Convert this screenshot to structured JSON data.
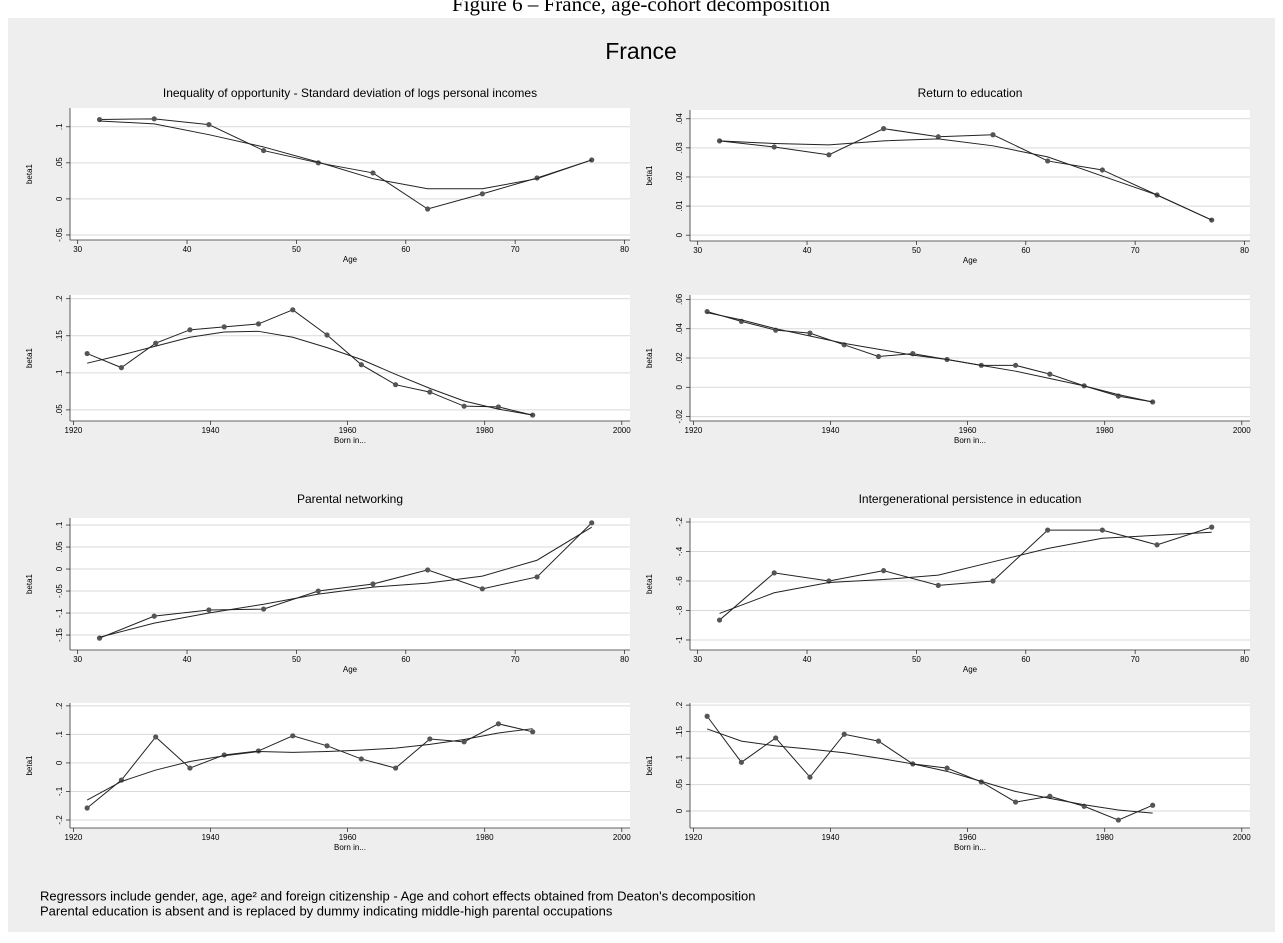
{
  "figure_caption": "Figure 6 – France, age-cohort decomposition",
  "title": "France",
  "notes": [
    "Regressors include gender, age, age² and foreign citizenship - Age and cohort effects obtained from Deaton's decomposition",
    "Parental education is absent and is replaced by dummy indicating middle-high parental occupations"
  ],
  "chart_data": [
    {
      "type": "line",
      "title": "Inequality of opportunity - Standard deviation of logs personal incomes",
      "ylabel": "beta1",
      "xlabel": "Age",
      "x": [
        32,
        37,
        42,
        47,
        52,
        57,
        62,
        67,
        72,
        77
      ],
      "xlim": [
        29.3,
        80.5
      ],
      "xticks": [
        30,
        40,
        50,
        60,
        70,
        80
      ],
      "ylim": [
        -0.057,
        0.126
      ],
      "yticks": [
        {
          "value": -0.05,
          "label": "-.05"
        },
        0,
        {
          "value": 0.05,
          "label": ".05"
        },
        {
          "value": 0.1,
          "label": ".1"
        }
      ],
      "grid": true,
      "series": [
        {
          "color": "#222222",
          "markers": true,
          "values": [
            0.11,
            0.111,
            0.103,
            0.067,
            0.05,
            0.036,
            -0.014,
            0.007,
            0.029,
            0.054
          ]
        },
        {
          "color": "#222222",
          "markers": false,
          "values": [
            0.108,
            0.104,
            0.089,
            0.072,
            0.051,
            0.028,
            0.014,
            0.014,
            0.028,
            0.054
          ]
        }
      ]
    },
    {
      "type": "line",
      "ylabel": "beta1",
      "xlabel": "Born in...",
      "x": [
        1922,
        1927,
        1932,
        1937,
        1942,
        1947,
        1952,
        1957,
        1962,
        1967,
        1972,
        1977,
        1982,
        1987
      ],
      "xlim": [
        1919.5,
        2001.2
      ],
      "xticks": [
        1920,
        1940,
        1960,
        1980,
        2000
      ],
      "ylim": [
        0.035,
        0.205
      ],
      "yticks": [
        {
          "value": 0.05,
          "label": ".05"
        },
        {
          "value": 0.1,
          "label": ".1"
        },
        {
          "value": 0.15,
          "label": ".15"
        },
        {
          "value": 0.2,
          "label": ".2"
        }
      ],
      "grid": true,
      "series": [
        {
          "color": "#222222",
          "markers": true,
          "values": [
            0.126,
            0.107,
            0.14,
            0.158,
            0.162,
            0.166,
            0.185,
            0.151,
            0.111,
            0.084,
            0.074,
            0.055,
            0.054,
            0.043
          ]
        },
        {
          "color": "#222222",
          "markers": false,
          "values": [
            0.113,
            0.124,
            0.136,
            0.148,
            0.155,
            0.156,
            0.148,
            0.134,
            0.118,
            0.098,
            0.079,
            0.062,
            0.051,
            0.043
          ]
        }
      ]
    },
    {
      "type": "line",
      "title": "Return to education",
      "ylabel": "beta1",
      "xlabel": "Age",
      "x": [
        32,
        37,
        42,
        47,
        52,
        57,
        62,
        67,
        72,
        77
      ],
      "xlim": [
        29.3,
        80.5
      ],
      "xticks": [
        30,
        40,
        50,
        60,
        70,
        80
      ],
      "ylim": [
        -0.002,
        0.043
      ],
      "yticks": [
        0,
        {
          "value": 0.01,
          "label": ".01"
        },
        {
          "value": 0.02,
          "label": ".02"
        },
        {
          "value": 0.03,
          "label": ".03"
        },
        {
          "value": 0.04,
          "label": ".04"
        }
      ],
      "grid": true,
      "series": [
        {
          "color": "#222222",
          "markers": true,
          "values": [
            0.0324,
            0.0303,
            0.0276,
            0.0366,
            0.0338,
            0.0345,
            0.0255,
            0.0224,
            0.0138,
            0.0052
          ]
        },
        {
          "color": "#222222",
          "markers": false,
          "values": [
            0.0324,
            0.0315,
            0.031,
            0.0324,
            0.0331,
            0.0307,
            0.0269,
            0.0203,
            0.0138,
            0.0052
          ]
        }
      ]
    },
    {
      "type": "line",
      "ylabel": "beta1",
      "xlabel": "Born in...",
      "x": [
        1922,
        1927,
        1932,
        1937,
        1942,
        1947,
        1952,
        1957,
        1962,
        1967,
        1972,
        1977,
        1982,
        1987
      ],
      "xlim": [
        1919.5,
        2001.2
      ],
      "xticks": [
        1920,
        1940,
        1960,
        1980,
        2000
      ],
      "ylim": [
        -0.023,
        0.063
      ],
      "yticks": [
        {
          "value": -0.02,
          "label": "-.02"
        },
        0,
        {
          "value": 0.02,
          "label": ".02"
        },
        {
          "value": 0.04,
          "label": ".04"
        },
        {
          "value": 0.06,
          "label": ".06"
        }
      ],
      "grid": true,
      "series": [
        {
          "color": "#222222",
          "markers": true,
          "values": [
            0.0517,
            0.045,
            0.039,
            0.037,
            0.029,
            0.021,
            0.023,
            0.019,
            0.015,
            0.015,
            0.009,
            0.001,
            -0.006,
            -0.01
          ]
        },
        {
          "color": "#222222",
          "markers": false,
          "values": [
            0.051,
            0.046,
            0.04,
            0.035,
            0.03,
            0.026,
            0.022,
            0.019,
            0.015,
            0.011,
            0.006,
            0.001,
            -0.005,
            -0.01
          ]
        }
      ]
    },
    {
      "type": "line",
      "title": "Parental networking",
      "ylabel": "beta1",
      "xlabel": "Age",
      "x": [
        32,
        37,
        42,
        47,
        52,
        57,
        62,
        67,
        72,
        77
      ],
      "xlim": [
        29.3,
        80.5
      ],
      "xticks": [
        30,
        40,
        50,
        60,
        70,
        80
      ],
      "ylim": [
        -0.184,
        0.116
      ],
      "yticks": [
        {
          "value": -0.15,
          "label": "-.15"
        },
        {
          "value": -0.1,
          "label": "-.1"
        },
        {
          "value": -0.05,
          "label": "-.05"
        },
        0,
        {
          "value": 0.05,
          "label": ".05"
        },
        {
          "value": 0.1,
          "label": ".1"
        }
      ],
      "grid": true,
      "series": [
        {
          "color": "#222222",
          "markers": true,
          "values": [
            -0.157,
            -0.107,
            -0.093,
            -0.091,
            -0.05,
            -0.034,
            -0.002,
            -0.045,
            -0.018,
            0.105
          ]
        },
        {
          "color": "#222222",
          "markers": false,
          "values": [
            -0.155,
            -0.123,
            -0.1,
            -0.08,
            -0.057,
            -0.041,
            -0.032,
            -0.016,
            0.02,
            0.095
          ]
        }
      ]
    },
    {
      "type": "line",
      "ylabel": "beta1",
      "xlabel": "Born in...",
      "x": [
        1922,
        1927,
        1932,
        1937,
        1942,
        1947,
        1952,
        1957,
        1962,
        1967,
        1972,
        1977,
        1982,
        1987
      ],
      "xlim": [
        1919.5,
        2001.2
      ],
      "xticks": [
        1920,
        1940,
        1960,
        1980,
        2000
      ],
      "ylim": [
        -0.228,
        0.21
      ],
      "yticks": [
        {
          "value": -0.2,
          "label": "-.2"
        },
        {
          "value": -0.1,
          "label": "-.1"
        },
        0,
        {
          "value": 0.1,
          "label": ".1"
        },
        {
          "value": 0.2,
          "label": ".2"
        }
      ],
      "grid": true,
      "series": [
        {
          "color": "#222222",
          "markers": true,
          "values": [
            -0.158,
            -0.06,
            0.091,
            -0.018,
            0.028,
            0.042,
            0.095,
            0.06,
            0.014,
            -0.018,
            0.084,
            0.074,
            0.137,
            0.109
          ]
        },
        {
          "color": "#222222",
          "markers": false,
          "values": [
            -0.13,
            -0.065,
            -0.025,
            0.005,
            0.025,
            0.04,
            0.037,
            0.04,
            0.045,
            0.052,
            0.065,
            0.082,
            0.105,
            0.12
          ]
        }
      ]
    },
    {
      "type": "line",
      "title": "Intergenerational persistence in education",
      "ylabel": "beta1",
      "xlabel": "Age",
      "x": [
        32,
        37,
        42,
        47,
        52,
        57,
        62,
        67,
        72,
        77
      ],
      "xlim": [
        29.3,
        80.5
      ],
      "xticks": [
        30,
        40,
        50,
        60,
        70,
        80
      ],
      "ylim": [
        -1.068,
        -0.173
      ],
      "yticks": [
        -1,
        {
          "value": -0.8,
          "label": "-.8"
        },
        {
          "value": -0.6,
          "label": "-.6"
        },
        {
          "value": -0.4,
          "label": "-.4"
        },
        {
          "value": -0.2,
          "label": "-.2"
        }
      ],
      "grid": true,
      "series": [
        {
          "color": "#222222",
          "markers": true,
          "values": [
            -0.865,
            -0.545,
            -0.6,
            -0.53,
            -0.63,
            -0.6,
            -0.255,
            -0.255,
            -0.355,
            -0.235
          ]
        },
        {
          "color": "#222222",
          "markers": false,
          "values": [
            -0.82,
            -0.68,
            -0.61,
            -0.59,
            -0.56,
            -0.47,
            -0.38,
            -0.31,
            -0.29,
            -0.27
          ]
        }
      ]
    },
    {
      "type": "line",
      "ylabel": "beta1",
      "xlabel": "Born in...",
      "x": [
        1922,
        1927,
        1932,
        1937,
        1942,
        1947,
        1952,
        1957,
        1962,
        1967,
        1972,
        1977,
        1982,
        1987
      ],
      "xlim": [
        1919.5,
        2001.2
      ],
      "xticks": [
        1920,
        1940,
        1960,
        1980,
        2000
      ],
      "ylim": [
        -0.032,
        0.204
      ],
      "yticks": [
        0,
        {
          "value": 0.05,
          "label": ".05"
        },
        {
          "value": 0.1,
          "label": ".1"
        },
        {
          "value": 0.15,
          "label": ".15"
        },
        {
          "value": 0.2,
          "label": ".2"
        }
      ],
      "grid": true,
      "series": [
        {
          "color": "#222222",
          "markers": true,
          "values": [
            0.179,
            0.092,
            0.138,
            0.064,
            0.145,
            0.132,
            0.089,
            0.081,
            0.055,
            0.017,
            0.028,
            0.009,
            -0.017,
            0.011
          ]
        },
        {
          "color": "#222222",
          "markers": false,
          "values": [
            0.155,
            0.132,
            0.123,
            0.117,
            0.11,
            0.1,
            0.089,
            0.075,
            0.056,
            0.037,
            0.024,
            0.012,
            0.002,
            -0.004
          ]
        }
      ]
    }
  ]
}
